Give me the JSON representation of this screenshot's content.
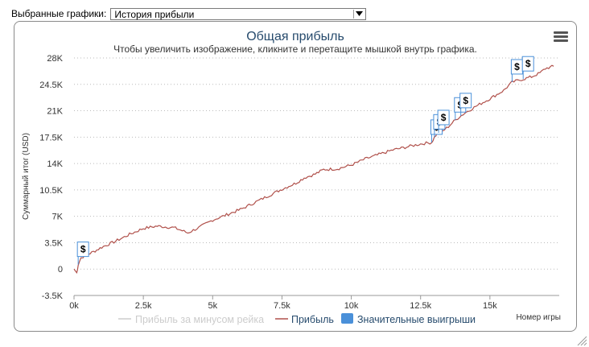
{
  "selector": {
    "label": "Выбранные графики:",
    "value": "История прибыли"
  },
  "chart_data": {
    "type": "line",
    "title": "Общая прибыль",
    "subtitle": "Чтобы увеличить изображение, кликните и перетащите мышкой внутрь графика.",
    "xlabel": "Номер игры",
    "ylabel": "Суммарный итог (USD)",
    "xlim": [
      0,
      17500
    ],
    "ylim": [
      -3500,
      28000
    ],
    "x_ticks": [
      0,
      2500,
      5000,
      7500,
      10000,
      12500,
      15000
    ],
    "x_tick_labels": [
      "0k",
      "2.5k",
      "5k",
      "7.5k",
      "10k",
      "12.5k",
      "15k"
    ],
    "y_ticks": [
      -3500,
      0,
      3500,
      7000,
      10500,
      14000,
      17500,
      21000,
      24500,
      28000
    ],
    "y_tick_labels": [
      "-3.5K",
      "0",
      "3.5K",
      "7K",
      "10.5K",
      "14K",
      "17.5K",
      "21K",
      "24.5K",
      "28K"
    ],
    "grid": "horizontal-dotted",
    "legend_position": "bottom",
    "legend": [
      "Прибыль за минусом рейка",
      "Прибыль",
      "Значительные выигрыши"
    ],
    "series": [
      {
        "name": "Прибыль",
        "color": "#b0504a",
        "x": [
          0,
          100,
          150,
          250,
          400,
          700,
          1000,
          1500,
          2000,
          2500,
          3000,
          3300,
          3600,
          3900,
          4100,
          4500,
          5000,
          5500,
          6000,
          6500,
          7000,
          7500,
          8000,
          8300,
          8700,
          9000,
          9500,
          10000,
          10500,
          11000,
          11500,
          12000,
          12500,
          12900,
          13000,
          13100,
          13300,
          13500,
          13700,
          13900,
          14100,
          14500,
          15000,
          15500,
          15800,
          16000,
          16200,
          16500,
          16800,
          17000,
          17300
        ],
        "values": [
          0,
          -500,
          600,
          1500,
          1800,
          2300,
          2900,
          3700,
          4600,
          5400,
          5700,
          5600,
          5500,
          5100,
          4800,
          5500,
          6500,
          7200,
          7900,
          8800,
          9700,
          10600,
          11400,
          12100,
          12600,
          13200,
          13300,
          13800,
          14600,
          15200,
          15800,
          16200,
          16600,
          16800,
          17500,
          18000,
          18300,
          18900,
          19600,
          20200,
          20700,
          21600,
          22600,
          23700,
          24800,
          25000,
          25200,
          25500,
          26000,
          26600,
          26900
        ]
      }
    ],
    "big_wins": {
      "name": "Значительные выигрыши",
      "color": "#4a90d9",
      "symbol": "$",
      "x": [
        150,
        12900,
        13000,
        13150,
        13750,
        13950,
        15800,
        16200
      ]
    }
  }
}
